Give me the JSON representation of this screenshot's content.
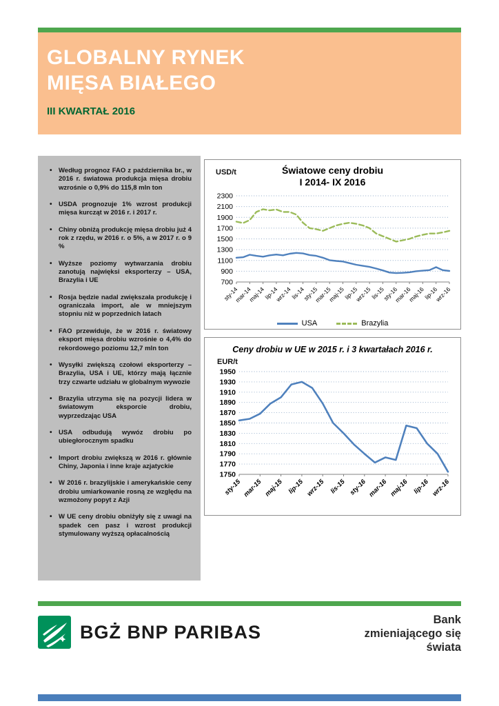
{
  "header": {
    "title_line1": "GLOBALNY RYNEK",
    "title_line2": "MIĘSA BIAŁEGO",
    "subtitle": "III KWARTAŁ 2016"
  },
  "bullets": [
    "Według prognoz FAO z października br., w 2016 r. światowa produkcja mięsa drobiu wzrośnie o 0,9% do 115,8 mln ton",
    "USDA prognozuje 1% wzrost produkcji mięsa kurcząt w 2016 r. i 2017 r.",
    "Chiny obniżą produkcję mięsa drobiu już 4 rok z rzędu, w 2016 r. o 5%, a w 2017 r. o 9 %",
    "Wyższe poziomy wytwarzania drobiu zanotują najwięksi eksporterzy – USA, Brazylia i UE",
    "Rosja będzie nadal zwiększała produkcję i ograniczała import, ale w mniejszym stopniu niż w poprzednich latach",
    "FAO przewiduje, że w 2016 r. światowy eksport mięsa drobiu wzrośnie o 4,4% do rekordowego poziomu 12,7 mln ton",
    "Wysyłki zwiększą czołowi eksporterzy – Brazylia, USA i UE, którzy mają łącznie trzy czwarte udziału w globalnym wywozie",
    "Brazylia utrzyma się na pozycji lidera w światowym eksporcie drobiu, wyprzedzając USA",
    "USA odbudują wywóz drobiu po ubiegłorocznym spadku",
    "Import drobiu zwiększą w 2016 r. głównie Chiny, Japonia i inne kraje azjatyckie",
    "W 2016 r. brazylijskie i amerykańskie ceny drobiu umiarkowanie rosną ze względu na wzmożony popyt z Azji",
    "W UE ceny drobiu obniżyły się z uwagi na spadek cen pasz i wzrost produkcji stymulowany wyższą opłacalnością"
  ],
  "chart_data": [
    {
      "type": "line",
      "title_line1": "Światowe ceny drobiu",
      "title_line2": "I 2014- IX 2016",
      "unit": "USD/t",
      "ylim": [
        700,
        2300
      ],
      "ytick_step": 200,
      "grid": true,
      "legend_position": "bottom",
      "x_labels": [
        "sty-14",
        "mar-14",
        "maj-14",
        "lip-14",
        "wrz-14",
        "lis-14",
        "sty-15",
        "mar-15",
        "maj-15",
        "lip-15",
        "wrz-15",
        "lis-15",
        "sty-16",
        "mar-16",
        "maj-16",
        "lip-16",
        "wrz-16"
      ],
      "series": [
        {
          "name": "USA",
          "color": "#4F81BD",
          "dash": "solid",
          "values": [
            1150,
            1160,
            1205,
            1185,
            1170,
            1195,
            1210,
            1195,
            1225,
            1240,
            1230,
            1200,
            1185,
            1150,
            1105,
            1090,
            1080,
            1050,
            1020,
            1000,
            980,
            950,
            915,
            875,
            865,
            870,
            880,
            900,
            910,
            920,
            975,
            920,
            905
          ]
        },
        {
          "name": "Brazylia",
          "color": "#9BBB59",
          "dash": "dashed",
          "values": [
            1820,
            1795,
            1850,
            2000,
            2050,
            2030,
            2045,
            2000,
            2000,
            1950,
            1800,
            1700,
            1680,
            1650,
            1700,
            1750,
            1780,
            1800,
            1780,
            1750,
            1700,
            1600,
            1550,
            1500,
            1450,
            1475,
            1500,
            1545,
            1575,
            1600,
            1600,
            1620,
            1650
          ]
        }
      ]
    },
    {
      "type": "line",
      "title": "Ceny drobiu w UE w 2015 r. i 3 kwartałach 2016 r.",
      "unit": "EUR/t",
      "ylim": [
        1750,
        1950
      ],
      "ytick_step": 20,
      "grid": true,
      "legend_position": "none",
      "x_labels": [
        "sty-15",
        "mar-15",
        "maj-15",
        "lip-15",
        "wrz-15",
        "lis-15",
        "sty-16",
        "mar-16",
        "maj-16",
        "lip-16",
        "wrz-16"
      ],
      "series": [
        {
          "name": "UE",
          "color": "#4F81BD",
          "dash": "solid",
          "values": [
            1855,
            1858,
            1868,
            1888,
            1900,
            1925,
            1930,
            1918,
            1888,
            1850,
            1830,
            1808,
            1790,
            1773,
            1783,
            1778,
            1845,
            1840,
            1810,
            1790,
            1755
          ]
        }
      ]
    }
  ],
  "footer": {
    "logo_text": "BGŻ BNP PARIBAS",
    "tagline_lines": [
      "Bank",
      "zmieniającego się",
      "świata"
    ]
  },
  "colors": {
    "accent_green": "#4EA64E",
    "header_peach": "#FABF8F",
    "subtitle_green": "#006633",
    "sidebar_gray": "#BFBFBF",
    "footer_blue": "#4A7EBB",
    "logo_green": "#00915A",
    "usa_line": "#4F81BD",
    "brazil_line": "#9BBB59"
  }
}
